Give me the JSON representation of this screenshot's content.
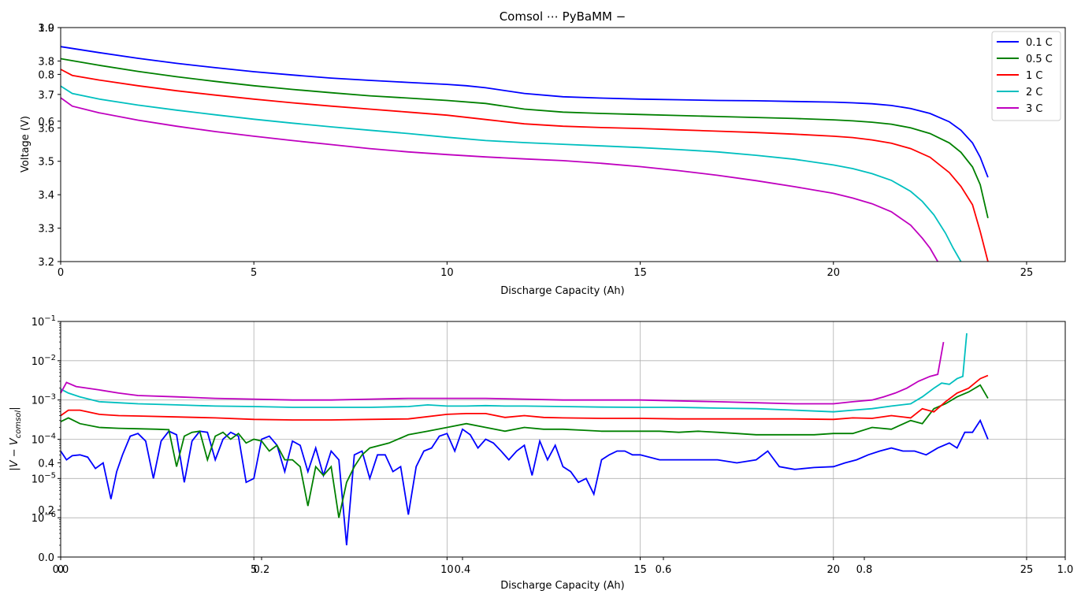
{
  "chart_data": [
    {
      "type": "line",
      "title": "Comsol ⋯ PyBaMM −",
      "xlabel": "Discharge Capacity (Ah)",
      "ylabel": "Voltage (V)",
      "xlim": [
        0,
        26
      ],
      "ylim": [
        3.2,
        3.9
      ],
      "xticks": [
        0,
        5,
        10,
        15,
        20,
        25
      ],
      "yticks": [
        3.2,
        3.3,
        3.4,
        3.5,
        3.6,
        3.7,
        3.8,
        3.9
      ],
      "overlay_ticks_left": [
        "1.0",
        "0.8",
        "0.6"
      ],
      "legend_position": "top-right",
      "series": [
        {
          "name": "0.1 C",
          "color": "#0000ff",
          "x": [
            0,
            1,
            2,
            3,
            4,
            5,
            6,
            7,
            8,
            9,
            10,
            10.5,
            11,
            12,
            13,
            14,
            15,
            16,
            17,
            18,
            19,
            20,
            20.5,
            21,
            21.5,
            22,
            22.5,
            23,
            23.3,
            23.6,
            23.8,
            24.0
          ],
          "y": [
            3.843,
            3.825,
            3.808,
            3.793,
            3.78,
            3.768,
            3.758,
            3.749,
            3.742,
            3.736,
            3.73,
            3.726,
            3.72,
            3.703,
            3.693,
            3.689,
            3.686,
            3.684,
            3.682,
            3.681,
            3.679,
            3.677,
            3.675,
            3.672,
            3.667,
            3.658,
            3.643,
            3.618,
            3.593,
            3.555,
            3.512,
            3.452
          ]
        },
        {
          "name": "0.5 C",
          "color": "#008000",
          "x": [
            0,
            1,
            2,
            3,
            4,
            5,
            6,
            7,
            8,
            9,
            10,
            11,
            12,
            13,
            14,
            15,
            16,
            17,
            18,
            19,
            20,
            20.5,
            21,
            21.5,
            22,
            22.5,
            23,
            23.3,
            23.6,
            23.8,
            24.0
          ],
          "y": [
            3.807,
            3.787,
            3.769,
            3.753,
            3.739,
            3.726,
            3.715,
            3.705,
            3.696,
            3.689,
            3.682,
            3.673,
            3.656,
            3.647,
            3.643,
            3.64,
            3.637,
            3.634,
            3.631,
            3.628,
            3.624,
            3.621,
            3.617,
            3.611,
            3.6,
            3.583,
            3.555,
            3.527,
            3.483,
            3.43,
            3.33
          ]
        },
        {
          "name": "1 C",
          "color": "#ff0000",
          "x": [
            0,
            0.3,
            1,
            2,
            3,
            4,
            5,
            6,
            7,
            8,
            9,
            10,
            11,
            12,
            13,
            14,
            15,
            16,
            17,
            18,
            19,
            20,
            20.5,
            21,
            21.5,
            22,
            22.5,
            23,
            23.3,
            23.6,
            23.8,
            24.0
          ],
          "y": [
            3.775,
            3.757,
            3.743,
            3.726,
            3.711,
            3.698,
            3.686,
            3.675,
            3.665,
            3.656,
            3.647,
            3.638,
            3.625,
            3.612,
            3.605,
            3.601,
            3.598,
            3.594,
            3.59,
            3.586,
            3.581,
            3.575,
            3.571,
            3.564,
            3.554,
            3.538,
            3.512,
            3.466,
            3.425,
            3.37,
            3.29,
            3.2
          ]
        },
        {
          "name": "2 C",
          "color": "#00bfbf",
          "x": [
            0,
            0.3,
            1,
            2,
            3,
            4,
            5,
            6,
            7,
            8,
            9,
            10,
            11,
            12,
            13,
            14,
            15,
            16,
            17,
            18,
            19,
            20,
            20.5,
            21,
            21.5,
            22,
            22.3,
            22.6,
            22.9,
            23.1,
            23.3
          ],
          "y": [
            3.725,
            3.703,
            3.686,
            3.668,
            3.653,
            3.639,
            3.626,
            3.614,
            3.603,
            3.593,
            3.583,
            3.572,
            3.562,
            3.556,
            3.551,
            3.546,
            3.541,
            3.535,
            3.528,
            3.518,
            3.506,
            3.489,
            3.478,
            3.463,
            3.443,
            3.41,
            3.38,
            3.34,
            3.285,
            3.24,
            3.2
          ]
        },
        {
          "name": "3 C",
          "color": "#bf00bf",
          "x": [
            0,
            0.3,
            1,
            2,
            3,
            4,
            5,
            6,
            7,
            8,
            9,
            10,
            11,
            12,
            13,
            14,
            15,
            16,
            17,
            18,
            19,
            20,
            20.5,
            21,
            21.5,
            22,
            22.3,
            22.5,
            22.7
          ],
          "y": [
            3.69,
            3.665,
            3.645,
            3.623,
            3.605,
            3.589,
            3.575,
            3.562,
            3.55,
            3.538,
            3.528,
            3.52,
            3.513,
            3.507,
            3.502,
            3.494,
            3.484,
            3.472,
            3.458,
            3.442,
            3.424,
            3.404,
            3.39,
            3.373,
            3.349,
            3.309,
            3.27,
            3.24,
            3.2
          ]
        }
      ]
    },
    {
      "type": "line",
      "title": "",
      "xlabel": "Discharge Capacity (Ah)",
      "ylabel": "|V − V_comsol|",
      "xlim": [
        0,
        26
      ],
      "yscale": "log",
      "ylim": [
        1e-07,
        0.1
      ],
      "xticks": [
        0,
        5,
        10,
        15,
        20,
        25
      ],
      "yticks_exponents": [
        -6,
        -5,
        -4,
        -3,
        -2,
        -1
      ],
      "grid": true,
      "overlay_ticks_left": [
        "0.0",
        "0.2",
        "0.4"
      ],
      "overlay_ticks_bottom": [
        "0.0",
        "0.2",
        "0.4",
        "0.6",
        "0.8",
        "1.0"
      ],
      "series": [
        {
          "name": "0.1 C",
          "color": "#0000ff",
          "x": [
            0,
            0.15,
            0.3,
            0.5,
            0.7,
            0.9,
            1.1,
            1.3,
            1.45,
            1.6,
            1.8,
            2.0,
            2.2,
            2.4,
            2.6,
            2.8,
            3.0,
            3.2,
            3.4,
            3.6,
            3.8,
            4.0,
            4.2,
            4.4,
            4.6,
            4.8,
            5.0,
            5.2,
            5.4,
            5.6,
            5.8,
            6.0,
            6.2,
            6.4,
            6.6,
            6.8,
            7.0,
            7.2,
            7.4,
            7.6,
            7.8,
            8.0,
            8.2,
            8.4,
            8.6,
            8.8,
            9.0,
            9.2,
            9.4,
            9.6,
            9.8,
            10.0,
            10.2,
            10.4,
            10.6,
            10.8,
            11.0,
            11.2,
            11.4,
            11.6,
            11.8,
            12.0,
            12.2,
            12.4,
            12.6,
            12.8,
            13.0,
            13.2,
            13.4,
            13.6,
            13.8,
            14.0,
            14.2,
            14.4,
            14.6,
            14.8,
            15.0,
            15.5,
            16.0,
            16.5,
            17.0,
            17.5,
            18.0,
            18.3,
            18.6,
            19.0,
            19.5,
            20.0,
            20.3,
            20.6,
            20.9,
            21.2,
            21.5,
            21.8,
            22.1,
            22.4,
            22.7,
            23.0,
            23.2,
            23.4,
            23.6,
            23.8,
            24.0
          ],
          "y": [
            5e-05,
            3e-05,
            3.8e-05,
            4e-05,
            3.5e-05,
            1.8e-05,
            2.5e-05,
            3e-06,
            1.5e-05,
            4e-05,
            0.00012,
            0.00014,
            9e-05,
            1e-05,
            9e-05,
            0.00016,
            0.00013,
            8e-06,
            9e-05,
            0.00016,
            0.00015,
            3e-05,
            0.0001,
            0.00015,
            0.00012,
            8e-06,
            1e-05,
            0.0001,
            0.00012,
            7e-05,
            1.5e-05,
            9e-05,
            7e-05,
            1.5e-05,
            6e-05,
            1.2e-05,
            5e-05,
            3e-05,
            2e-07,
            4e-05,
            5e-05,
            1e-05,
            4e-05,
            4e-05,
            1.5e-05,
            2e-05,
            1.2e-06,
            2e-05,
            5e-05,
            6e-05,
            0.00012,
            0.00014,
            5e-05,
            0.00018,
            0.00013,
            6e-05,
            0.0001,
            8e-05,
            5e-05,
            3e-05,
            5e-05,
            7e-05,
            1.2e-05,
            9e-05,
            3e-05,
            7e-05,
            2e-05,
            1.5e-05,
            8e-06,
            1e-05,
            4e-06,
            3e-05,
            4e-05,
            5e-05,
            5e-05,
            4e-05,
            4e-05,
            3e-05,
            3e-05,
            3e-05,
            3e-05,
            2.5e-05,
            3e-05,
            5e-05,
            2e-05,
            1.7e-05,
            1.9e-05,
            2e-05,
            2.5e-05,
            3e-05,
            4e-05,
            5e-05,
            6e-05,
            5e-05,
            5e-05,
            4e-05,
            6e-05,
            8e-05,
            6e-05,
            0.00015,
            0.00015,
            0.0003,
            0.0001
          ]
        },
        {
          "name": "0.5 C",
          "color": "#008000",
          "x": [
            0,
            0.2,
            0.5,
            1,
            1.5,
            2,
            2.5,
            2.8,
            3.0,
            3.2,
            3.4,
            3.6,
            3.8,
            4.0,
            4.2,
            4.4,
            4.6,
            4.8,
            5.0,
            5.2,
            5.4,
            5.6,
            5.8,
            6.0,
            6.2,
            6.4,
            6.6,
            6.8,
            7.0,
            7.2,
            7.4,
            7.6,
            7.8,
            8.0,
            8.5,
            9.0,
            9.5,
            10,
            10.5,
            11,
            11.5,
            12,
            12.5,
            13,
            13.5,
            14,
            14.5,
            15,
            15.5,
            16,
            16.5,
            17,
            17.5,
            18,
            18.5,
            19,
            19.5,
            20,
            20.5,
            21,
            21.5,
            22,
            22.3,
            22.6,
            22.9,
            23.2,
            23.5,
            23.8,
            24.0
          ],
          "y": [
            0.00028,
            0.00035,
            0.00025,
            0.0002,
            0.00019,
            0.000185,
            0.00018,
            0.000175,
            2e-05,
            0.00012,
            0.00015,
            0.00016,
            3e-05,
            0.00012,
            0.00015,
            0.0001,
            0.00014,
            8e-05,
            0.0001,
            9e-05,
            5e-05,
            7e-05,
            3e-05,
            3e-05,
            2e-05,
            2e-06,
            2e-05,
            1.2e-05,
            2e-05,
            1e-06,
            8e-06,
            2e-05,
            4e-05,
            6e-05,
            8e-05,
            0.00013,
            0.00016,
            0.0002,
            0.00025,
            0.0002,
            0.00016,
            0.0002,
            0.00018,
            0.00018,
            0.00017,
            0.00016,
            0.00016,
            0.00016,
            0.00016,
            0.00015,
            0.00016,
            0.00015,
            0.00014,
            0.00013,
            0.00013,
            0.00013,
            0.00013,
            0.00014,
            0.00014,
            0.0002,
            0.00018,
            0.0003,
            0.00025,
            0.0006,
            0.0008,
            0.0012,
            0.0016,
            0.0024,
            0.0011
          ]
        },
        {
          "name": "1 C",
          "color": "#ff0000",
          "x": [
            0,
            0.2,
            0.5,
            1,
            1.5,
            2,
            3,
            4,
            5,
            6,
            7,
            8,
            9,
            10,
            10.5,
            11,
            11.5,
            12,
            12.5,
            13,
            14,
            15,
            16,
            17,
            18,
            19,
            20,
            20.5,
            21,
            21.5,
            22,
            22.3,
            22.6,
            22.9,
            23.2,
            23.5,
            23.8,
            24.0
          ],
          "y": [
            0.0004,
            0.00055,
            0.00055,
            0.00043,
            0.0004,
            0.00039,
            0.00037,
            0.00035,
            0.00032,
            0.00031,
            0.00031,
            0.00032,
            0.00033,
            0.00043,
            0.00045,
            0.00045,
            0.00036,
            0.0004,
            0.00036,
            0.00035,
            0.00034,
            0.00034,
            0.00033,
            0.00033,
            0.00033,
            0.00033,
            0.00032,
            0.00035,
            0.00034,
            0.0004,
            0.00035,
            0.0006,
            0.0005,
            0.0009,
            0.0015,
            0.002,
            0.0035,
            0.0042
          ]
        },
        {
          "name": "2 C",
          "color": "#00bfbf",
          "x": [
            0,
            0.2,
            0.5,
            1,
            1.5,
            2,
            3,
            4,
            5,
            6,
            7,
            8,
            9,
            9.5,
            10,
            10.5,
            11,
            11.5,
            12,
            13,
            14,
            15,
            16,
            17,
            18,
            19,
            20,
            20.5,
            21,
            21.5,
            22,
            22.3,
            22.6,
            22.8,
            23.0,
            23.2,
            23.35,
            23.45
          ],
          "y": [
            0.0019,
            0.0015,
            0.0012,
            0.0009,
            0.00085,
            0.0008,
            0.00075,
            0.0007,
            0.00068,
            0.00065,
            0.00065,
            0.00065,
            0.00068,
            0.00075,
            0.0007,
            0.0007,
            0.00072,
            0.0007,
            0.0007,
            0.00068,
            0.00066,
            0.00065,
            0.00065,
            0.00062,
            0.0006,
            0.00055,
            0.0005,
            0.00055,
            0.0006,
            0.0007,
            0.0008,
            0.0012,
            0.002,
            0.0027,
            0.0025,
            0.0035,
            0.004,
            0.05
          ]
        },
        {
          "name": "3 C",
          "color": "#bf00bf",
          "x": [
            0,
            0.15,
            0.4,
            1,
            1.5,
            2,
            3,
            4,
            5,
            6,
            7,
            8,
            9,
            9.5,
            10,
            11,
            12,
            13,
            14,
            15,
            16,
            17,
            18,
            19,
            20,
            20.5,
            21,
            21.3,
            21.6,
            21.9,
            22.2,
            22.5,
            22.7,
            22.85
          ],
          "y": [
            0.0015,
            0.0028,
            0.0022,
            0.0018,
            0.0015,
            0.0013,
            0.0012,
            0.0011,
            0.00105,
            0.001,
            0.001,
            0.00105,
            0.0011,
            0.0011,
            0.0011,
            0.0011,
            0.00105,
            0.001,
            0.001,
            0.001,
            0.00095,
            0.0009,
            0.00085,
            0.0008,
            0.0008,
            0.0009,
            0.001,
            0.0012,
            0.0015,
            0.002,
            0.003,
            0.004,
            0.0045,
            0.03
          ]
        }
      ]
    }
  ]
}
